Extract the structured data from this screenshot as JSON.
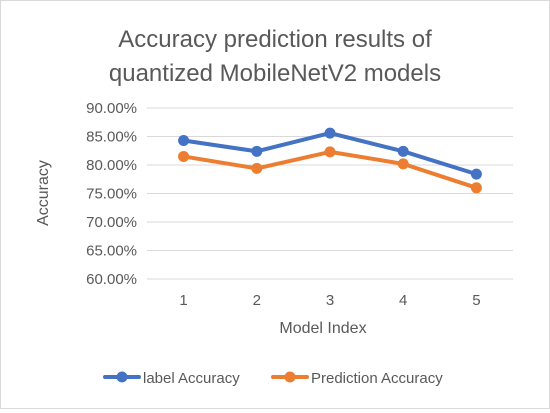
{
  "chart_data": {
    "type": "line",
    "title_lines": [
      "Accuracy prediction results of",
      "quantized MobileNetV2 models"
    ],
    "xlabel": "Model Index",
    "ylabel": "Accuracy",
    "categories": [
      "1",
      "2",
      "3",
      "4",
      "5"
    ],
    "ylim": [
      0.6,
      0.9
    ],
    "yticks": [
      0.6,
      0.65,
      0.7,
      0.75,
      0.8,
      0.85,
      0.9
    ],
    "ytick_labels": [
      "60.00%",
      "65.00%",
      "70.00%",
      "75.00%",
      "80.00%",
      "85.00%",
      "90.00%"
    ],
    "grid": true,
    "legend_position": "bottom",
    "series": [
      {
        "name": "label Accuracy",
        "color": "#4472c4",
        "values": [
          0.843,
          0.824,
          0.856,
          0.824,
          0.784
        ]
      },
      {
        "name": "Prediction Accuracy",
        "color": "#ed7d31",
        "values": [
          0.815,
          0.794,
          0.823,
          0.802,
          0.76
        ]
      }
    ]
  }
}
